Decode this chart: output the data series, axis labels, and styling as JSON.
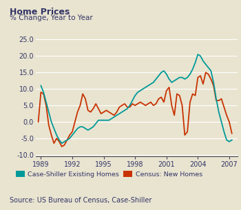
{
  "title": "Home Prices",
  "subtitle": "% Change, Year to Year",
  "source": "Source: US Bureau of Census, Case-Shiller",
  "background_color": "#e8e4d0",
  "plot_bg_color": "#e8e4d0",
  "teal_color": "#009999",
  "orange_color": "#c83200",
  "text_color": "#333366",
  "yticks": [
    -10.0,
    -5.0,
    0.0,
    5.0,
    10.0,
    15.0,
    20.0,
    25.0
  ],
  "xticks": [
    1989,
    1992,
    1995,
    1998,
    2001,
    2004,
    2007
  ],
  "xlim": [
    1988.5,
    2007.8
  ],
  "ylim": [
    -10.5,
    26.5
  ],
  "legend_label_teal": "Case-Shiller Existing Homes",
  "legend_label_orange": "Census: New Homes",
  "cs_x": [
    1989.0,
    1989.25,
    1989.5,
    1989.75,
    1990.0,
    1990.25,
    1990.5,
    1990.75,
    1991.0,
    1991.25,
    1991.5,
    1991.75,
    1992.0,
    1992.25,
    1992.5,
    1992.75,
    1993.0,
    1993.25,
    1993.5,
    1993.75,
    1994.0,
    1994.25,
    1994.5,
    1994.75,
    1995.0,
    1995.25,
    1995.5,
    1995.75,
    1996.0,
    1996.25,
    1996.5,
    1996.75,
    1997.0,
    1997.25,
    1997.5,
    1997.75,
    1998.0,
    1998.25,
    1998.5,
    1998.75,
    1999.0,
    1999.25,
    1999.5,
    1999.75,
    2000.0,
    2000.25,
    2000.5,
    2000.75,
    2001.0,
    2001.25,
    2001.5,
    2001.75,
    2002.0,
    2002.25,
    2002.5,
    2002.75,
    2003.0,
    2003.25,
    2003.5,
    2003.75,
    2004.0,
    2004.25,
    2004.5,
    2004.75,
    2005.0,
    2005.25,
    2005.5,
    2005.75,
    2006.0,
    2006.25,
    2006.5,
    2006.75,
    2007.0,
    2007.25
  ],
  "cs_y": [
    11.0,
    9.0,
    6.0,
    3.0,
    0.0,
    -2.0,
    -4.0,
    -5.5,
    -6.5,
    -6.0,
    -5.5,
    -5.0,
    -4.0,
    -3.0,
    -2.0,
    -1.5,
    -1.5,
    -2.0,
    -2.5,
    -2.0,
    -1.5,
    -0.5,
    0.5,
    0.5,
    0.5,
    0.5,
    0.5,
    1.0,
    1.5,
    2.0,
    2.5,
    3.0,
    3.5,
    4.0,
    5.0,
    6.5,
    8.0,
    9.0,
    9.5,
    10.0,
    10.5,
    11.0,
    11.5,
    12.0,
    13.0,
    14.0,
    15.0,
    15.5,
    14.5,
    13.0,
    12.0,
    12.5,
    13.0,
    13.5,
    13.5,
    13.0,
    13.5,
    14.5,
    16.0,
    18.0,
    20.5,
    20.0,
    18.5,
    17.5,
    16.5,
    15.5,
    12.0,
    7.0,
    3.0,
    0.0,
    -3.0,
    -5.5,
    -6.0,
    -5.5
  ],
  "census_x": [
    1988.75,
    1989.0,
    1989.25,
    1989.5,
    1989.75,
    1990.0,
    1990.25,
    1990.5,
    1990.75,
    1991.0,
    1991.25,
    1991.5,
    1991.75,
    1992.0,
    1992.25,
    1992.5,
    1992.75,
    1993.0,
    1993.25,
    1993.5,
    1993.75,
    1994.0,
    1994.25,
    1994.5,
    1994.75,
    1995.0,
    1995.25,
    1995.5,
    1995.75,
    1996.0,
    1996.25,
    1996.5,
    1996.75,
    1997.0,
    1997.25,
    1997.5,
    1997.75,
    1998.0,
    1998.25,
    1998.5,
    1998.75,
    1999.0,
    1999.25,
    1999.5,
    1999.75,
    2000.0,
    2000.25,
    2000.5,
    2000.75,
    2001.0,
    2001.25,
    2001.5,
    2001.75,
    2002.0,
    2002.25,
    2002.5,
    2002.75,
    2003.0,
    2003.25,
    2003.5,
    2003.75,
    2004.0,
    2004.25,
    2004.5,
    2004.75,
    2005.0,
    2005.25,
    2005.5,
    2005.75,
    2006.0,
    2006.25,
    2006.5,
    2006.75,
    2007.0,
    2007.25
  ],
  "census_y": [
    0.0,
    9.0,
    8.5,
    5.0,
    -1.0,
    -4.0,
    -6.5,
    -5.0,
    -6.0,
    -7.5,
    -7.0,
    -5.5,
    -4.0,
    -3.0,
    0.0,
    3.0,
    5.0,
    8.5,
    7.0,
    3.5,
    3.0,
    4.0,
    5.5,
    4.0,
    2.5,
    3.0,
    3.5,
    3.0,
    2.5,
    2.0,
    3.0,
    4.5,
    5.0,
    5.5,
    4.5,
    4.5,
    5.5,
    5.0,
    5.5,
    6.0,
    5.5,
    5.0,
    5.5,
    6.0,
    5.0,
    5.5,
    7.0,
    7.5,
    6.0,
    9.5,
    10.5,
    5.0,
    2.0,
    8.5,
    8.0,
    5.0,
    -4.0,
    -3.0,
    6.0,
    8.5,
    8.0,
    13.5,
    14.0,
    11.5,
    15.0,
    14.5,
    13.0,
    11.0,
    6.5,
    6.5,
    7.0,
    4.5,
    2.0,
    0.0,
    -3.5
  ]
}
